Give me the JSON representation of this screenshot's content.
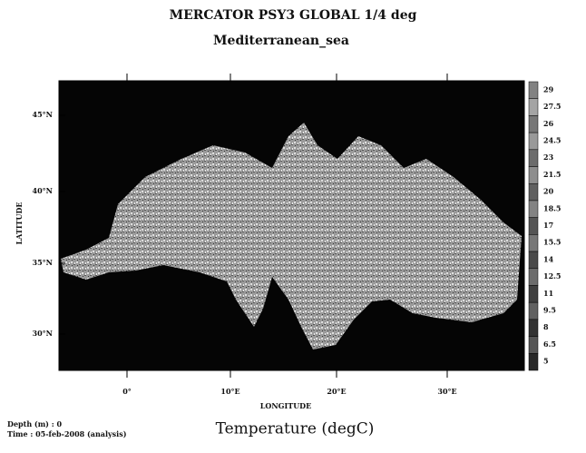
{
  "header": {
    "title": "MERCATOR PSY3 GLOBAL 1/4 deg",
    "subtitle": "Mediterranean_sea"
  },
  "map": {
    "y_axis_label": "LATITUDE",
    "x_axis_label": "LONGITUDE",
    "lat_ticks": [
      "45°N",
      "40°N",
      "35°N",
      "30°N"
    ],
    "lon_ticks": [
      "0°",
      "10°E",
      "20°E",
      "30°E"
    ]
  },
  "colorbar": {
    "ticks": [
      29,
      27.5,
      26,
      24.5,
      23,
      21.5,
      20,
      18.5,
      17,
      15.5,
      14,
      12.5,
      11,
      9.5,
      8,
      6.5,
      5
    ]
  },
  "footer": {
    "depth": "Depth (m) : 0",
    "time": "Time : 05-feb-2008 (analysis)",
    "variable": "Temperature (degC)"
  }
}
